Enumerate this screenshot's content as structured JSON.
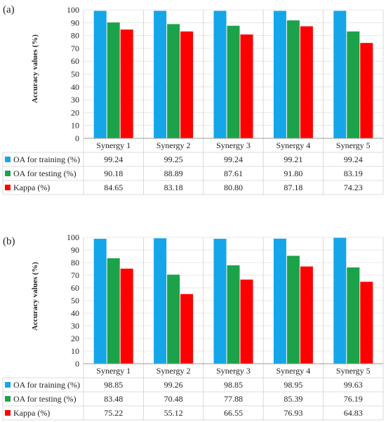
{
  "chart_data": [
    {
      "panel": "(a)",
      "type": "bar",
      "ylabel": "Accuracy values (%)",
      "ylim": [
        0,
        100
      ],
      "yticks": [
        0,
        10,
        20,
        30,
        40,
        50,
        60,
        70,
        80,
        90,
        100
      ],
      "categories": [
        "Synergy 1",
        "Synergy 2",
        "Synergy 3",
        "Synergy 4",
        "Synergy 5"
      ],
      "series": [
        {
          "name": "OA for training (%)",
          "color": "#14a6e8",
          "values": [
            99.24,
            99.25,
            99.24,
            99.21,
            99.24
          ],
          "labels": [
            "99.24",
            "99.25",
            "99.24",
            "99.21",
            "99.24"
          ]
        },
        {
          "name": "OA for testing (%)",
          "color": "#1ca34a",
          "values": [
            90.18,
            88.89,
            87.61,
            91.8,
            83.19
          ],
          "labels": [
            "90.18",
            "88.89",
            "87.61",
            "91.80",
            "83.19"
          ]
        },
        {
          "name": "Kappa (%)",
          "color": "#ff0000",
          "values": [
            84.65,
            83.18,
            80.8,
            87.18,
            74.23
          ],
          "labels": [
            "84.65",
            "83.18",
            "80.80",
            "87.18",
            "74.23"
          ]
        }
      ]
    },
    {
      "panel": "(b)",
      "type": "bar",
      "ylabel": "Accuracy values (%)",
      "ylim": [
        0,
        100
      ],
      "yticks": [
        0,
        10,
        20,
        30,
        40,
        50,
        60,
        70,
        80,
        90,
        100
      ],
      "categories": [
        "Synergy 1",
        "Synergy 2",
        "Synergy 3",
        "Synergy 4",
        "Synergy 5"
      ],
      "series": [
        {
          "name": "OA for training (%)",
          "color": "#14a6e8",
          "values": [
            98.85,
            99.26,
            98.85,
            98.95,
            99.63
          ],
          "labels": [
            "98.85",
            "99.26",
            "98.85",
            "98.95",
            "99.63"
          ]
        },
        {
          "name": "OA for testing (%)",
          "color": "#1ca34a",
          "values": [
            83.48,
            70.48,
            77.88,
            85.39,
            76.19
          ],
          "labels": [
            "83.48",
            "70.48",
            "77.88",
            "85.39",
            "76.19"
          ]
        },
        {
          "name": "Kappa (%)",
          "color": "#ff0000",
          "values": [
            75.22,
            55.12,
            66.55,
            76.93,
            64.83
          ],
          "labels": [
            "75.22",
            "55.12",
            "66.55",
            "76.93",
            "64.83"
          ]
        }
      ]
    }
  ]
}
